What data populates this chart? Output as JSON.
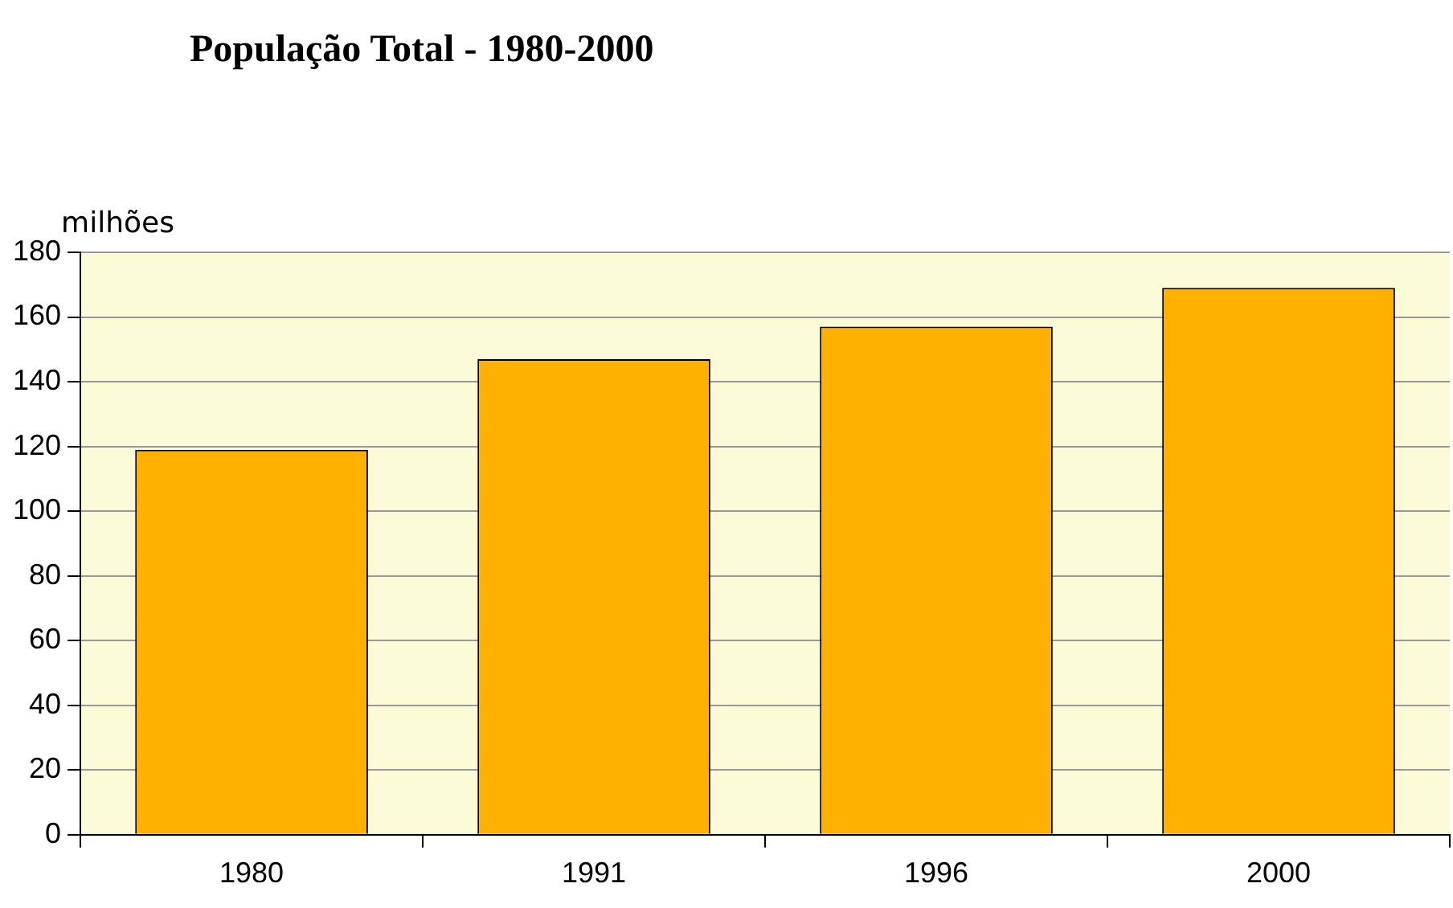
{
  "chart_data": {
    "type": "bar",
    "title": "População Total - 1980-2000",
    "ylabel": "milhões",
    "categories": [
      "1980",
      "1991",
      "1996",
      "2000"
    ],
    "values": [
      119,
      147,
      157,
      169
    ],
    "color": "#ffb000",
    "ylim": [
      0,
      180
    ],
    "yticks": [
      0,
      20,
      40,
      60,
      80,
      100,
      120,
      140,
      160,
      180
    ],
    "grid": "y",
    "bands": [
      {
        "axis": "y",
        "from": 0,
        "to": 180,
        "color": "#fbfbd8"
      }
    ]
  }
}
